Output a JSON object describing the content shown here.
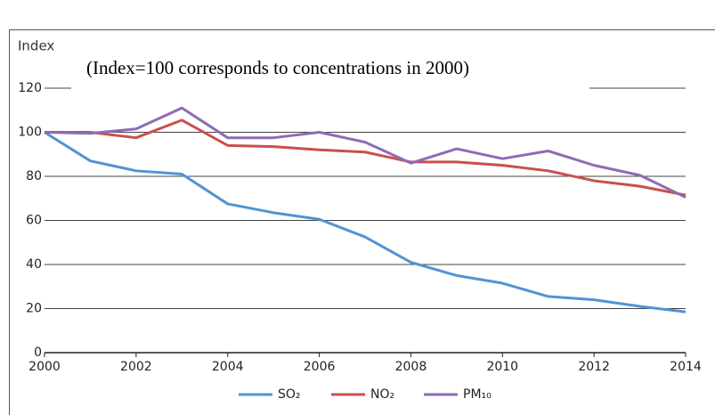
{
  "chart_data": {
    "type": "line",
    "title": "(Index=100 corresponds to concentrations in 2000)",
    "y_label": "Index",
    "x": [
      2000,
      2001,
      2002,
      2003,
      2004,
      2005,
      2006,
      2007,
      2008,
      2009,
      2010,
      2011,
      2012,
      2013,
      2014
    ],
    "xlim": [
      2000,
      2014
    ],
    "xticks": [
      2000,
      2002,
      2004,
      2006,
      2008,
      2010,
      2012,
      2014
    ],
    "ylim": [
      0,
      120
    ],
    "yticks": [
      0,
      20,
      40,
      60,
      80,
      100,
      120
    ],
    "grid": true,
    "legend": "bottom",
    "series": [
      {
        "name": "SO₂",
        "color": "#4f94d4",
        "values": [
          100,
          87,
          82.5,
          81,
          67.5,
          63.5,
          60.5,
          52.5,
          41,
          35,
          31.5,
          25.5,
          24,
          21,
          18.5
        ]
      },
      {
        "name": "NO₂",
        "color": "#c9504d",
        "values": [
          100,
          100,
          97.5,
          105.5,
          94,
          93.5,
          92,
          91,
          86.5,
          86.5,
          85,
          82.5,
          78,
          75.5,
          71.5
        ]
      },
      {
        "name": "PM₁₀",
        "color": "#8e6bb5",
        "values": [
          100,
          99.5,
          101.5,
          111,
          97.5,
          97.5,
          100,
          95.5,
          86,
          92.5,
          88,
          91.5,
          85,
          80.5,
          70.5
        ]
      }
    ]
  }
}
